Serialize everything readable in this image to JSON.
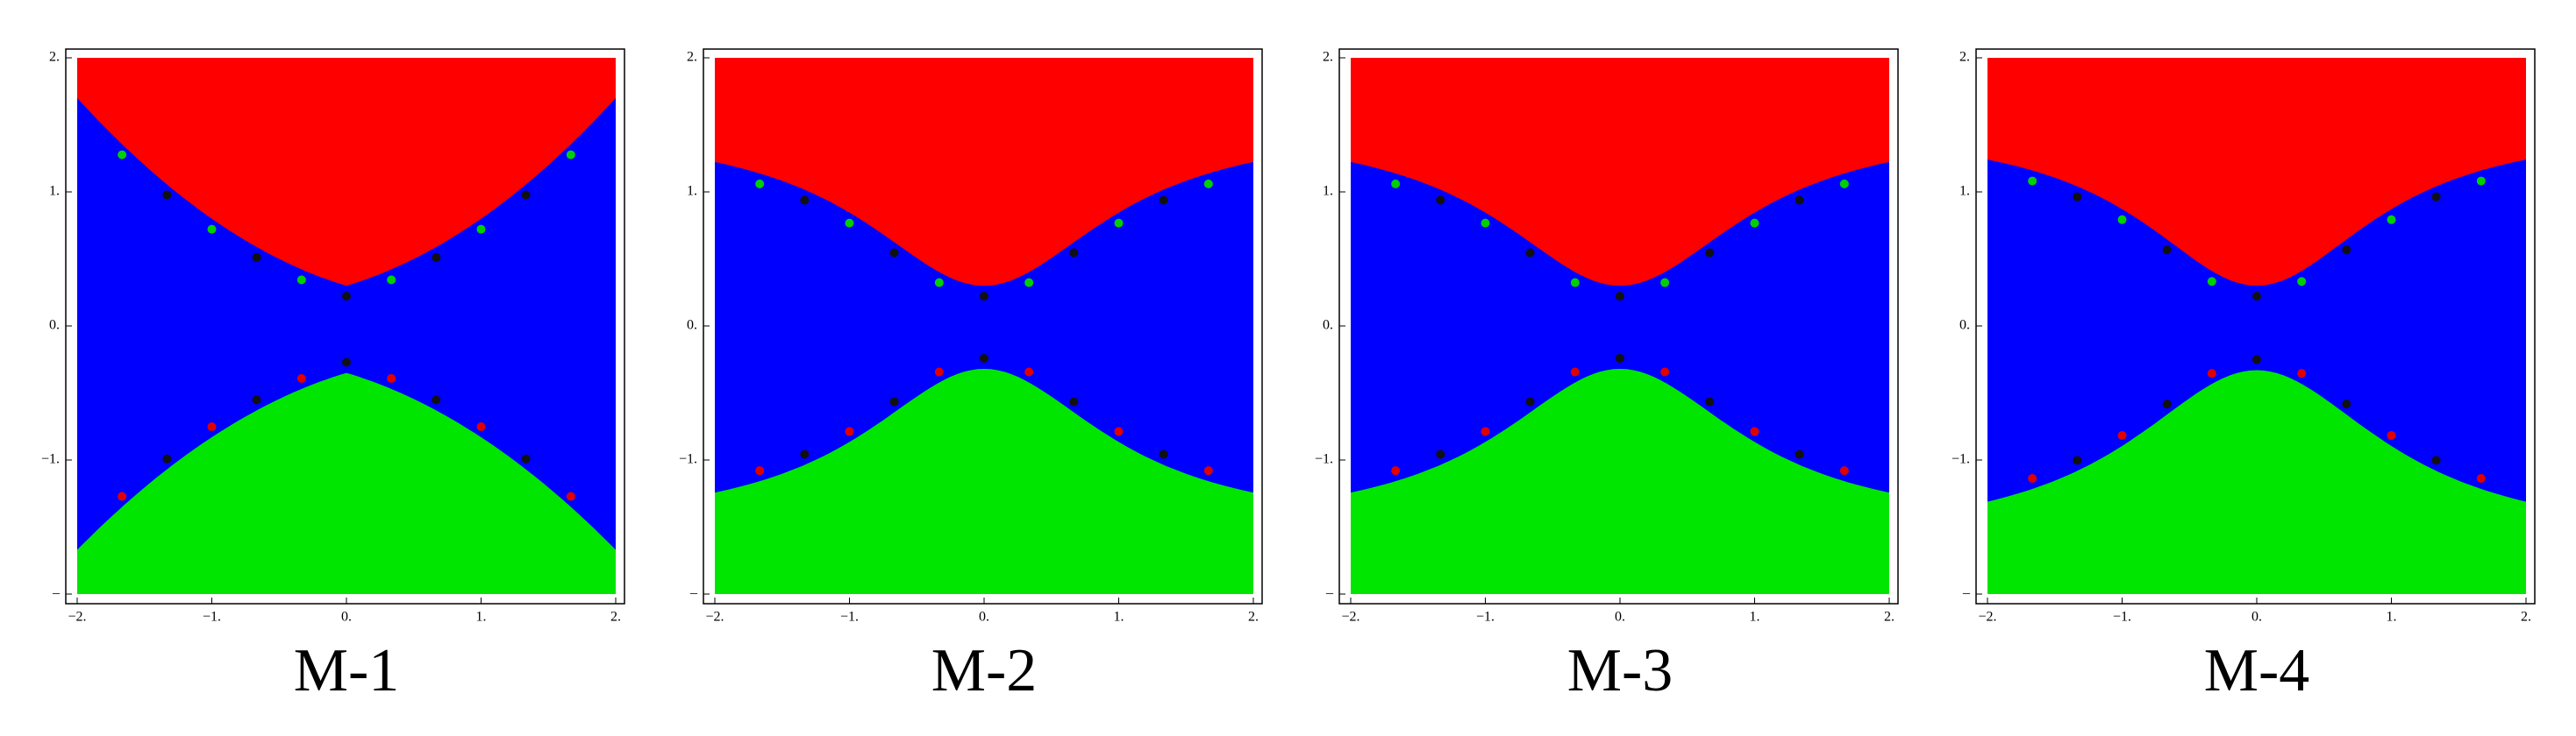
{
  "chart_data": [
    {
      "type": "basin",
      "title": "M-1",
      "xlim": [
        -2,
        2
      ],
      "ylim": [
        -2,
        2
      ],
      "xticks": [
        {
          "value": -2,
          "label": "−2."
        },
        {
          "value": -1,
          "label": "−1."
        },
        {
          "value": 0,
          "label": "0."
        },
        {
          "value": 1,
          "label": "1."
        },
        {
          "value": 2,
          "label": "2."
        }
      ],
      "yticks": [
        {
          "value": 2,
          "label": "2."
        },
        {
          "value": 1,
          "label": "1."
        },
        {
          "value": 0,
          "label": "0."
        },
        {
          "value": -1,
          "label": "−1."
        },
        {
          "value": -2,
          "label": "–"
        }
      ]
    },
    {
      "type": "basin",
      "title": "M-2",
      "xlim": [
        -2,
        2
      ],
      "ylim": [
        -2,
        2
      ],
      "xticks": [
        {
          "value": -2,
          "label": "−2."
        },
        {
          "value": -1,
          "label": "−1."
        },
        {
          "value": 0,
          "label": "0."
        },
        {
          "value": 1,
          "label": "1."
        },
        {
          "value": 2,
          "label": "2."
        }
      ],
      "yticks": [
        {
          "value": 2,
          "label": "2."
        },
        {
          "value": 1,
          "label": "1."
        },
        {
          "value": 0,
          "label": "0."
        },
        {
          "value": -1,
          "label": "−1."
        },
        {
          "value": -2,
          "label": "–"
        }
      ]
    },
    {
      "type": "basin",
      "title": "M-3",
      "xlim": [
        -2,
        2
      ],
      "ylim": [
        -2,
        2
      ],
      "xticks": [
        {
          "value": -2,
          "label": "−2."
        },
        {
          "value": -1,
          "label": "−1."
        },
        {
          "value": 0,
          "label": "0."
        },
        {
          "value": 1,
          "label": "1."
        },
        {
          "value": 2,
          "label": "2."
        }
      ],
      "yticks": [
        {
          "value": 2,
          "label": "2."
        },
        {
          "value": 1,
          "label": "1."
        },
        {
          "value": 0,
          "label": "0."
        },
        {
          "value": -1,
          "label": "−1."
        },
        {
          "value": -2,
          "label": "–"
        }
      ]
    },
    {
      "type": "basin",
      "title": "M-4",
      "xlim": [
        -2,
        2
      ],
      "ylim": [
        -2,
        2
      ],
      "xticks": [
        {
          "value": -2,
          "label": "−2."
        },
        {
          "value": -1,
          "label": "−1."
        },
        {
          "value": 0,
          "label": "0."
        },
        {
          "value": 1,
          "label": "1."
        },
        {
          "value": 2,
          "label": "2."
        }
      ],
      "yticks": [
        {
          "value": 2,
          "label": "2."
        },
        {
          "value": 1,
          "label": "1."
        },
        {
          "value": 0,
          "label": "0."
        },
        {
          "value": -1,
          "label": "−1."
        },
        {
          "value": -2,
          "label": "–"
        }
      ]
    }
  ]
}
